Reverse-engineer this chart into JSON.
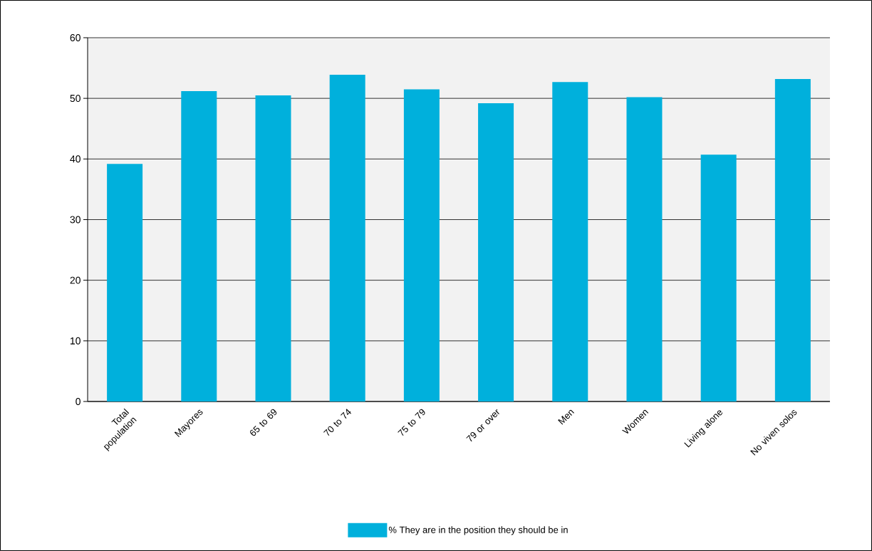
{
  "chart_data": {
    "type": "bar",
    "categories": [
      "Total population",
      "Mayores",
      "65 to 69",
      "70 to 74",
      "75 to 79",
      "79 or over",
      "Men",
      "Women",
      "Living alone",
      "No viven solos"
    ],
    "series": [
      {
        "name": "% They are in the position they should be in",
        "color": "#00b0dc",
        "values": [
          39.2,
          51.2,
          50.5,
          53.9,
          51.5,
          49.2,
          52.7,
          50.2,
          40.7,
          53.2
        ]
      }
    ],
    "ylim": [
      0,
      60
    ],
    "yticks": [
      0,
      10,
      20,
      30,
      40,
      50,
      60
    ],
    "grid": "y",
    "legend": "bottom"
  }
}
